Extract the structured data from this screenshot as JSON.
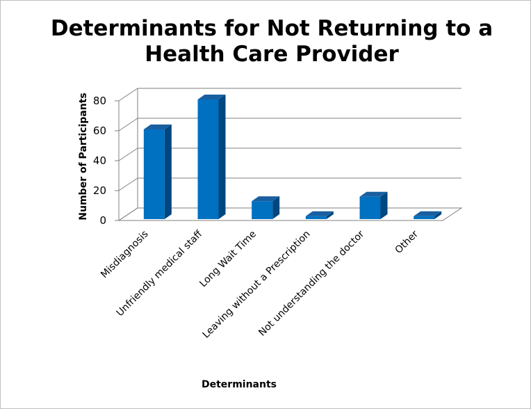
{
  "chart_data": {
    "type": "bar",
    "title_lines": [
      "Determinants for Not Returning to a",
      "Health Care Provider"
    ],
    "xlabel": "Determinants",
    "ylabel": "Number of Participants",
    "categories": [
      "Misdiagnosis",
      "Unfriendly medical staff",
      "Long Wait Time",
      "Leaving without a Prescription",
      "Not understanding the doctor",
      "Other"
    ],
    "values": [
      60,
      80,
      12,
      2,
      15,
      2
    ],
    "ylim": [
      0,
      80
    ],
    "yticks": [
      "0",
      "20",
      "40",
      "60",
      "80"
    ],
    "grid": true,
    "legend": "none",
    "bar_color": "#0070c0",
    "bar_side_color": "#00467f",
    "bar_top_color": "#1a5fa0"
  }
}
